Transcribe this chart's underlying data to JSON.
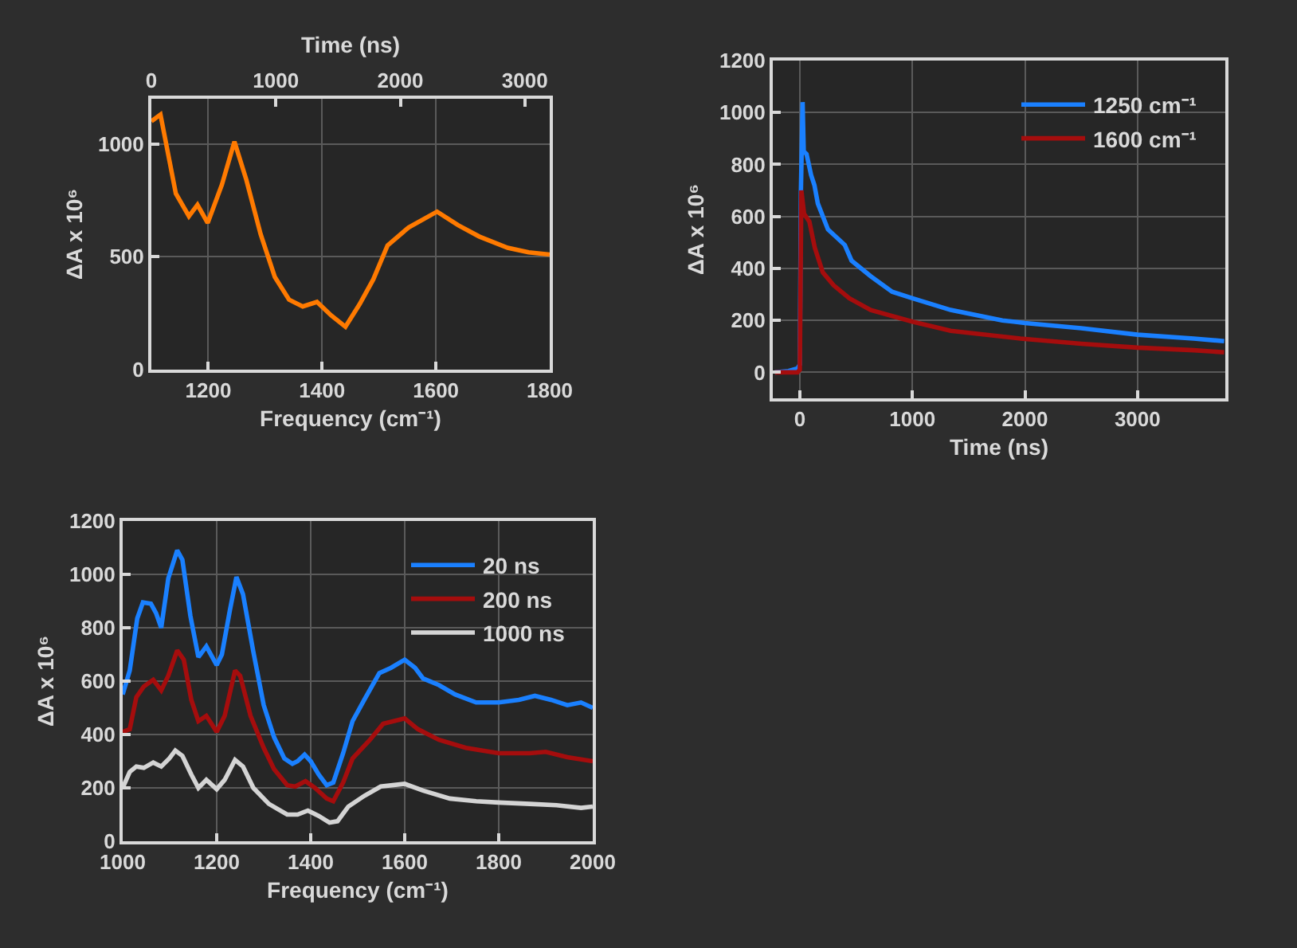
{
  "chart_data": [
    {
      "type": "line",
      "xlabel": "Frequency (cm⁻¹)",
      "ylabel": "ΔA x 10⁶",
      "x2label": "Time (ns)",
      "xlim": [
        1100,
        1800
      ],
      "xticks": [
        1200,
        1400,
        1600,
        1800
      ],
      "x2lim": [
        0,
        3200
      ],
      "x2ticks": [
        0,
        1000,
        2000,
        3000
      ],
      "ylim": [
        0,
        1200
      ],
      "yticks": [
        0,
        500,
        1000
      ],
      "grid": true,
      "series": [
        {
          "color": "#ff7a00",
          "x": [
            1100,
            1116,
            1143,
            1166,
            1181,
            1199,
            1224,
            1246,
            1267,
            1292,
            1317,
            1342,
            1366,
            1391,
            1416,
            1441,
            1466,
            1490,
            1515,
            1552,
            1602,
            1639,
            1676,
            1726,
            1763,
            1800
          ],
          "values": [
            1100,
            1130,
            780,
            680,
            730,
            650,
            820,
            1010,
            840,
            600,
            410,
            310,
            280,
            300,
            240,
            190,
            290,
            400,
            550,
            630,
            700,
            640,
            590,
            540,
            520,
            510
          ]
        }
      ]
    },
    {
      "type": "line",
      "xlabel": "Time (ns)",
      "ylabel": "ΔA x 10⁶",
      "xlim": [
        -240,
        3780
      ],
      "xticks": [
        0,
        1000,
        2000,
        3000
      ],
      "ylim": [
        -100,
        1200
      ],
      "yticks": [
        0,
        200,
        400,
        600,
        800,
        1000,
        1200
      ],
      "grid": true,
      "legend": "top right",
      "series": [
        {
          "name": "1250 cm⁻¹",
          "color": "#1a80ff",
          "x": [
            -220,
            -100,
            -20,
            0,
            10,
            25,
            35,
            60,
            80,
            100,
            130,
            160,
            250,
            400,
            460,
            630,
            820,
            1000,
            1340,
            1800,
            2000,
            2500,
            3000,
            3500,
            3770
          ],
          "values": [
            0,
            5,
            15,
            30,
            700,
            1040,
            850,
            840,
            800,
            760,
            720,
            650,
            550,
            490,
            430,
            370,
            310,
            285,
            240,
            200,
            190,
            170,
            145,
            130,
            120
          ]
        },
        {
          "name": "1600 cm⁻¹",
          "color": "#a50d0d",
          "x": [
            -220,
            -20,
            0,
            14,
            38,
            85,
            133,
            204,
            300,
            440,
            630,
            1000,
            1340,
            1960,
            2500,
            3000,
            3500,
            3770
          ],
          "values": [
            0,
            0,
            10,
            700,
            610,
            580,
            480,
            385,
            335,
            285,
            240,
            195,
            160,
            130,
            110,
            95,
            85,
            77
          ]
        }
      ]
    },
    {
      "type": "line",
      "xlabel": "Frequency (cm⁻¹)",
      "ylabel": "ΔA x 10⁶",
      "xlim": [
        1000,
        2000
      ],
      "xticks": [
        1000,
        1200,
        1400,
        1600,
        1800,
        2000
      ],
      "ylim": [
        0,
        1200
      ],
      "yticks": [
        0,
        200,
        400,
        600,
        800,
        1000,
        1200
      ],
      "grid": true,
      "legend": "top right",
      "series": [
        {
          "name": "20 ns",
          "color": "#1a80ff",
          "x": [
            1000,
            1015,
            1031,
            1043,
            1060,
            1071,
            1082,
            1097,
            1116,
            1127,
            1144,
            1161,
            1178,
            1200,
            1211,
            1228,
            1242,
            1256,
            1278,
            1300,
            1322,
            1344,
            1361,
            1372,
            1387,
            1400,
            1417,
            1434,
            1448,
            1469,
            1489,
            1514,
            1546,
            1571,
            1600,
            1622,
            1639,
            1673,
            1707,
            1752,
            1800,
            1843,
            1877,
            1911,
            1946,
            1975,
            2000
          ],
          "values": [
            550,
            640,
            835,
            895,
            890,
            855,
            800,
            985,
            1090,
            1055,
            845,
            690,
            730,
            660,
            700,
            865,
            990,
            925,
            710,
            510,
            390,
            310,
            290,
            300,
            325,
            300,
            250,
            210,
            220,
            330,
            450,
            530,
            630,
            650,
            680,
            650,
            610,
            585,
            550,
            520,
            520,
            530,
            545,
            530,
            510,
            520,
            500
          ]
        },
        {
          "name": "200 ns",
          "color": "#a50d0d",
          "x": [
            1000,
            1015,
            1029,
            1045,
            1065,
            1082,
            1097,
            1116,
            1130,
            1146,
            1161,
            1178,
            1200,
            1217,
            1239,
            1250,
            1272,
            1300,
            1322,
            1350,
            1367,
            1389,
            1409,
            1434,
            1448,
            1469,
            1489,
            1526,
            1554,
            1600,
            1628,
            1673,
            1730,
            1800,
            1866,
            1900,
            1946,
            2000
          ],
          "values": [
            410,
            420,
            540,
            580,
            605,
            565,
            620,
            715,
            680,
            530,
            450,
            470,
            410,
            470,
            640,
            620,
            470,
            350,
            270,
            210,
            205,
            225,
            200,
            160,
            150,
            220,
            310,
            380,
            440,
            460,
            420,
            380,
            350,
            330,
            330,
            335,
            315,
            300
          ]
        },
        {
          "name": "1000 ns",
          "color": "#d4d4d4",
          "x": [
            1000,
            1015,
            1029,
            1045,
            1065,
            1082,
            1099,
            1112,
            1127,
            1146,
            1161,
            1178,
            1200,
            1217,
            1239,
            1256,
            1278,
            1311,
            1350,
            1372,
            1394,
            1417,
            1440,
            1457,
            1480,
            1514,
            1549,
            1600,
            1639,
            1696,
            1752,
            1800,
            1866,
            1923,
            1975,
            2000
          ],
          "values": [
            200,
            260,
            280,
            275,
            295,
            280,
            310,
            340,
            320,
            250,
            200,
            230,
            195,
            230,
            305,
            280,
            200,
            140,
            100,
            100,
            115,
            95,
            70,
            75,
            130,
            170,
            205,
            215,
            190,
            160,
            150,
            145,
            140,
            135,
            125,
            130
          ]
        }
      ]
    }
  ]
}
